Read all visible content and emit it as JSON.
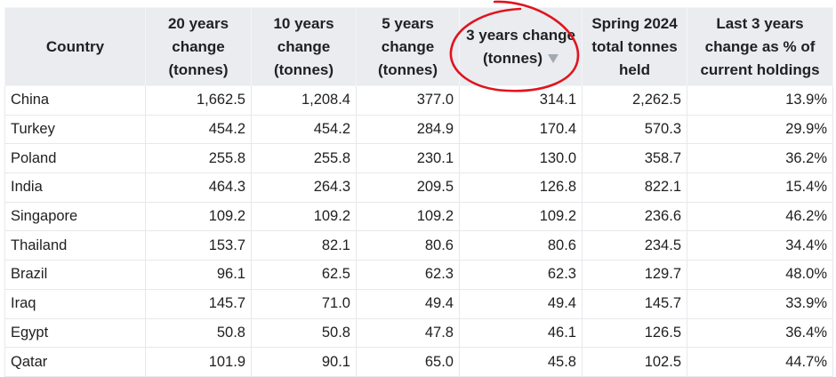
{
  "table": {
    "headers": [
      "Country",
      "20 years change (tonnes)",
      "10 years change (tonnes)",
      "5 years change (tonnes)",
      "3 years change (tonnes)",
      "Spring 2024 total tonnes held",
      "Last 3 years change as % of current holdings"
    ],
    "rows": [
      [
        "China",
        "1,662.5",
        "1,208.4",
        "377.0",
        "314.1",
        "2,262.5",
        "13.9%"
      ],
      [
        "Turkey",
        "454.2",
        "454.2",
        "284.9",
        "170.4",
        "570.3",
        "29.9%"
      ],
      [
        "Poland",
        "255.8",
        "255.8",
        "230.1",
        "130.0",
        "358.7",
        "36.2%"
      ],
      [
        "India",
        "464.3",
        "264.3",
        "209.5",
        "126.8",
        "822.1",
        "15.4%"
      ],
      [
        "Singapore",
        "109.2",
        "109.2",
        "109.2",
        "109.2",
        "236.6",
        "46.2%"
      ],
      [
        "Thailand",
        "153.7",
        "82.1",
        "80.6",
        "80.6",
        "234.5",
        "34.4%"
      ],
      [
        "Brazil",
        "96.1",
        "62.5",
        "62.3",
        "62.3",
        "129.7",
        "48.0%"
      ],
      [
        "Iraq",
        "145.7",
        "71.0",
        "49.4",
        "49.4",
        "145.7",
        "33.9%"
      ],
      [
        "Egypt",
        "50.8",
        "50.8",
        "47.8",
        "46.1",
        "126.5",
        "36.4%"
      ],
      [
        "Qatar",
        "101.9",
        "90.1",
        "65.0",
        "45.8",
        "102.5",
        "44.7%"
      ]
    ]
  }
}
